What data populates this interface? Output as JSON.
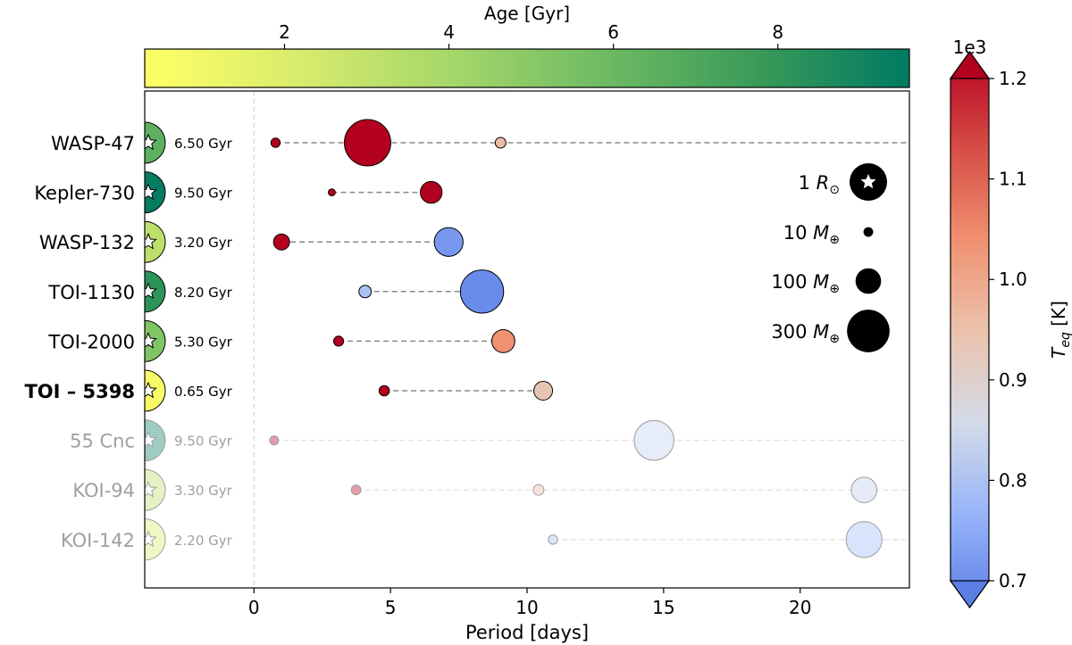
{
  "chart_data": {
    "type": "scatter",
    "xlabel": "Period [days]",
    "xlim": [
      -4,
      24
    ],
    "xticks": [
      0,
      5,
      10,
      15,
      20
    ],
    "age_colorbar": {
      "label": "Age [Gyr]",
      "range": [
        0.3,
        9.6
      ],
      "ticks": [
        2,
        4,
        6,
        8
      ],
      "colors": [
        "#ffff66",
        "#d8ec6c",
        "#a6d76a",
        "#6ebb63",
        "#3a9b58",
        "#007a62"
      ]
    },
    "teq_colorbar": {
      "label": "T",
      "label_sub": "eq",
      "label_unit": "[K]",
      "multiplier": "1e3",
      "range": [
        0.7,
        1.2
      ],
      "ticks": [
        "0.7",
        "0.8",
        "0.9",
        "1.0",
        "1.1",
        "1.2"
      ],
      "colors": [
        "#5b7ee5",
        "#97b4f9",
        "#d4dbe8",
        "#ebc2ab",
        "#f08f6f",
        "#d54a44",
        "#b4001f"
      ]
    },
    "legend": [
      {
        "label": "1 R",
        "symbol": "⊙",
        "kind": "star"
      },
      {
        "label": "10 M",
        "symbol": "⊕",
        "kind": "mass",
        "value": 10
      },
      {
        "label": "100 M",
        "symbol": "⊕",
        "kind": "mass",
        "value": 100
      },
      {
        "label": "300 M",
        "symbol": "⊕",
        "kind": "mass",
        "value": 300
      }
    ],
    "systems": [
      {
        "name": "WASP-47",
        "age": 6.5,
        "age_label": "6.50 Gyr",
        "bold": false,
        "faded": false,
        "extends": true,
        "planets": [
          {
            "period": 0.79,
            "mass": 9,
            "teq": 1.2
          },
          {
            "period": 4.16,
            "mass": 360,
            "teq": 1.2
          },
          {
            "period": 9.03,
            "mass": 13,
            "teq": 0.96
          }
        ]
      },
      {
        "name": "Kepler-730",
        "age": 9.5,
        "age_label": "9.50 Gyr",
        "bold": false,
        "faded": false,
        "extends": false,
        "planets": [
          {
            "period": 2.85,
            "mass": 4,
            "teq": 1.2
          },
          {
            "period": 6.49,
            "mass": 70,
            "teq": 1.2
          }
        ]
      },
      {
        "name": "WASP-132",
        "age": 3.2,
        "age_label": "3.20 Gyr",
        "bold": false,
        "faded": false,
        "extends": false,
        "planets": [
          {
            "period": 1.01,
            "mass": 35,
            "teq": 1.2
          },
          {
            "period": 7.13,
            "mass": 130,
            "teq": 0.74
          }
        ]
      },
      {
        "name": "TOI-1130",
        "age": 8.2,
        "age_label": "8.20 Gyr",
        "bold": false,
        "faded": false,
        "extends": false,
        "planets": [
          {
            "period": 4.07,
            "mass": 19,
            "teq": 0.81
          },
          {
            "period": 8.35,
            "mass": 310,
            "teq": 0.72
          }
        ]
      },
      {
        "name": "TOI-2000",
        "age": 5.3,
        "age_label": "5.30 Gyr",
        "bold": false,
        "faded": false,
        "extends": false,
        "planets": [
          {
            "period": 3.1,
            "mass": 11,
            "teq": 1.2
          },
          {
            "period": 9.13,
            "mass": 80,
            "teq": 1.03
          }
        ]
      },
      {
        "name": "TOI – 5398",
        "age": 0.65,
        "age_label": "0.65 Gyr",
        "bold": true,
        "faded": false,
        "extends": false,
        "planets": [
          {
            "period": 4.77,
            "mass": 12,
            "teq": 1.2
          },
          {
            "period": 10.59,
            "mass": 50,
            "teq": 0.94
          }
        ]
      },
      {
        "name": "55 Cnc",
        "age": 9.5,
        "age_label": "9.50 Gyr",
        "bold": false,
        "faded": true,
        "extends": true,
        "planets": [
          {
            "period": 0.74,
            "mass": 8,
            "teq": 1.2
          },
          {
            "period": 14.65,
            "mass": 260,
            "teq": 0.84
          }
        ]
      },
      {
        "name": "KOI-94",
        "age": 3.3,
        "age_label": "3.30 Gyr",
        "bold": false,
        "faded": true,
        "extends": true,
        "planets": [
          {
            "period": 3.74,
            "mass": 10,
            "teq": 1.2
          },
          {
            "period": 10.42,
            "mass": 13,
            "teq": 0.97
          },
          {
            "period": 22.34,
            "mass": 100,
            "teq": 0.83
          }
        ]
      },
      {
        "name": "KOI-142",
        "age": 2.2,
        "age_label": "2.20 Gyr",
        "bold": false,
        "faded": true,
        "extends": true,
        "planets": [
          {
            "period": 10.95,
            "mass": 9,
            "teq": 0.81
          },
          {
            "period": 22.34,
            "mass": 210,
            "teq": 0.79
          }
        ]
      }
    ]
  }
}
